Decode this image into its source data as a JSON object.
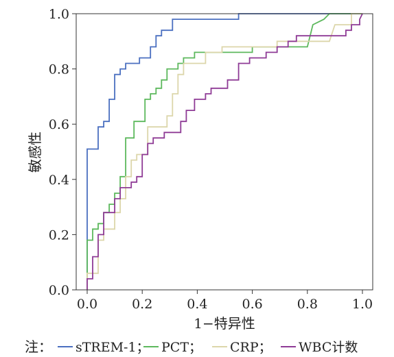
{
  "chart_data": {
    "type": "line",
    "xlabel": "1−特异性",
    "ylabel": "敏感性",
    "xlim": [
      0,
      1
    ],
    "ylim": [
      0,
      1
    ],
    "x_ticks": [
      "0.0",
      "0.2",
      "0.4",
      "0.6",
      "0.8",
      "1.0"
    ],
    "y_ticks": [
      "0.0",
      "0.2",
      "0.4",
      "0.6",
      "0.8",
      "1.0"
    ],
    "x_tick_values": [
      0,
      0.2,
      0.4,
      0.6,
      0.8,
      1.0
    ],
    "y_tick_values": [
      0,
      0.2,
      0.4,
      0.6,
      0.8,
      1.0
    ],
    "grid": false,
    "legend_position": "bottom",
    "series": [
      {
        "name": "sTREM-1",
        "color": "#4a6fc0",
        "points": [
          [
            0,
            0
          ],
          [
            0,
            0.51
          ],
          [
            0.04,
            0.51
          ],
          [
            0.04,
            0.59
          ],
          [
            0.06,
            0.59
          ],
          [
            0.06,
            0.61
          ],
          [
            0.08,
            0.61
          ],
          [
            0.08,
            0.69
          ],
          [
            0.1,
            0.69
          ],
          [
            0.1,
            0.78
          ],
          [
            0.12,
            0.78
          ],
          [
            0.12,
            0.8
          ],
          [
            0.14,
            0.8
          ],
          [
            0.14,
            0.82
          ],
          [
            0.19,
            0.82
          ],
          [
            0.19,
            0.84
          ],
          [
            0.23,
            0.84
          ],
          [
            0.23,
            0.88
          ],
          [
            0.25,
            0.88
          ],
          [
            0.25,
            0.92
          ],
          [
            0.27,
            0.92
          ],
          [
            0.27,
            0.94
          ],
          [
            0.31,
            0.94
          ],
          [
            0.31,
            0.98
          ],
          [
            0.55,
            0.98
          ],
          [
            0.55,
            1.0
          ],
          [
            1.0,
            1.0
          ]
        ]
      },
      {
        "name": "PCT",
        "color": "#5cb85c",
        "points": [
          [
            0,
            0
          ],
          [
            0,
            0.18
          ],
          [
            0.02,
            0.18
          ],
          [
            0.02,
            0.22
          ],
          [
            0.04,
            0.22
          ],
          [
            0.04,
            0.24
          ],
          [
            0.06,
            0.24
          ],
          [
            0.06,
            0.28
          ],
          [
            0.08,
            0.28
          ],
          [
            0.08,
            0.31
          ],
          [
            0.1,
            0.31
          ],
          [
            0.1,
            0.35
          ],
          [
            0.12,
            0.35
          ],
          [
            0.12,
            0.41
          ],
          [
            0.14,
            0.41
          ],
          [
            0.14,
            0.55
          ],
          [
            0.17,
            0.55
          ],
          [
            0.17,
            0.61
          ],
          [
            0.21,
            0.61
          ],
          [
            0.21,
            0.69
          ],
          [
            0.23,
            0.69
          ],
          [
            0.23,
            0.71
          ],
          [
            0.25,
            0.71
          ],
          [
            0.25,
            0.73
          ],
          [
            0.27,
            0.73
          ],
          [
            0.27,
            0.76
          ],
          [
            0.29,
            0.76
          ],
          [
            0.29,
            0.8
          ],
          [
            0.33,
            0.8
          ],
          [
            0.33,
            0.82
          ],
          [
            0.35,
            0.82
          ],
          [
            0.35,
            0.84
          ],
          [
            0.39,
            0.84
          ],
          [
            0.39,
            0.86
          ],
          [
            0.6,
            0.86
          ],
          [
            0.6,
            0.88
          ],
          [
            0.8,
            0.88
          ],
          [
            0.82,
            0.96
          ],
          [
            0.86,
            0.98
          ],
          [
            0.88,
            1.0
          ],
          [
            1.0,
            1.0
          ]
        ]
      },
      {
        "name": "CRP",
        "color": "#dcd6aa",
        "points": [
          [
            0,
            0
          ],
          [
            0,
            0.06
          ],
          [
            0.04,
            0.06
          ],
          [
            0.04,
            0.18
          ],
          [
            0.06,
            0.18
          ],
          [
            0.06,
            0.22
          ],
          [
            0.1,
            0.22
          ],
          [
            0.1,
            0.28
          ],
          [
            0.12,
            0.28
          ],
          [
            0.12,
            0.33
          ],
          [
            0.14,
            0.33
          ],
          [
            0.14,
            0.41
          ],
          [
            0.16,
            0.41
          ],
          [
            0.16,
            0.47
          ],
          [
            0.18,
            0.47
          ],
          [
            0.18,
            0.49
          ],
          [
            0.22,
            0.49
          ],
          [
            0.22,
            0.59
          ],
          [
            0.29,
            0.59
          ],
          [
            0.29,
            0.63
          ],
          [
            0.31,
            0.63
          ],
          [
            0.31,
            0.71
          ],
          [
            0.33,
            0.71
          ],
          [
            0.33,
            0.78
          ],
          [
            0.35,
            0.78
          ],
          [
            0.35,
            0.82
          ],
          [
            0.43,
            0.82
          ],
          [
            0.43,
            0.86
          ],
          [
            0.49,
            0.86
          ],
          [
            0.49,
            0.88
          ],
          [
            0.69,
            0.88
          ],
          [
            0.69,
            0.9
          ],
          [
            0.88,
            0.9
          ],
          [
            0.9,
            0.96
          ],
          [
            0.96,
            0.96
          ],
          [
            0.96,
            1.0
          ],
          [
            1.0,
            1.0
          ]
        ]
      },
      {
        "name": "WBC计数",
        "color": "#8e3a95",
        "points": [
          [
            0,
            0
          ],
          [
            0,
            0.04
          ],
          [
            0.02,
            0.04
          ],
          [
            0.02,
            0.12
          ],
          [
            0.04,
            0.12
          ],
          [
            0.04,
            0.2
          ],
          [
            0.06,
            0.2
          ],
          [
            0.06,
            0.28
          ],
          [
            0.1,
            0.28
          ],
          [
            0.1,
            0.33
          ],
          [
            0.12,
            0.33
          ],
          [
            0.12,
            0.37
          ],
          [
            0.16,
            0.37
          ],
          [
            0.16,
            0.39
          ],
          [
            0.18,
            0.39
          ],
          [
            0.18,
            0.41
          ],
          [
            0.2,
            0.41
          ],
          [
            0.2,
            0.49
          ],
          [
            0.22,
            0.49
          ],
          [
            0.22,
            0.53
          ],
          [
            0.24,
            0.53
          ],
          [
            0.24,
            0.55
          ],
          [
            0.28,
            0.55
          ],
          [
            0.28,
            0.57
          ],
          [
            0.34,
            0.57
          ],
          [
            0.34,
            0.61
          ],
          [
            0.36,
            0.61
          ],
          [
            0.36,
            0.65
          ],
          [
            0.39,
            0.65
          ],
          [
            0.39,
            0.69
          ],
          [
            0.43,
            0.69
          ],
          [
            0.43,
            0.71
          ],
          [
            0.45,
            0.71
          ],
          [
            0.45,
            0.73
          ],
          [
            0.51,
            0.73
          ],
          [
            0.51,
            0.76
          ],
          [
            0.55,
            0.76
          ],
          [
            0.55,
            0.82
          ],
          [
            0.59,
            0.82
          ],
          [
            0.59,
            0.84
          ],
          [
            0.65,
            0.84
          ],
          [
            0.65,
            0.86
          ],
          [
            0.69,
            0.86
          ],
          [
            0.69,
            0.88
          ],
          [
            0.73,
            0.88
          ],
          [
            0.73,
            0.9
          ],
          [
            0.76,
            0.9
          ],
          [
            0.76,
            0.92
          ],
          [
            0.94,
            0.92
          ],
          [
            0.94,
            0.94
          ],
          [
            0.96,
            0.94
          ],
          [
            0.96,
            0.96
          ],
          [
            0.99,
            0.96
          ],
          [
            0.99,
            0.98
          ],
          [
            1.0,
            1.0
          ]
        ]
      }
    ]
  },
  "note": {
    "prefix": "注：",
    "items": [
      {
        "label": "sTREM-1；",
        "color": "#4a6fc0"
      },
      {
        "label": "PCT；",
        "color": "#5cb85c"
      },
      {
        "label": "CRP；",
        "color": "#dcd6aa"
      },
      {
        "label": "WBC计数",
        "color": "#8e3a95"
      }
    ]
  }
}
